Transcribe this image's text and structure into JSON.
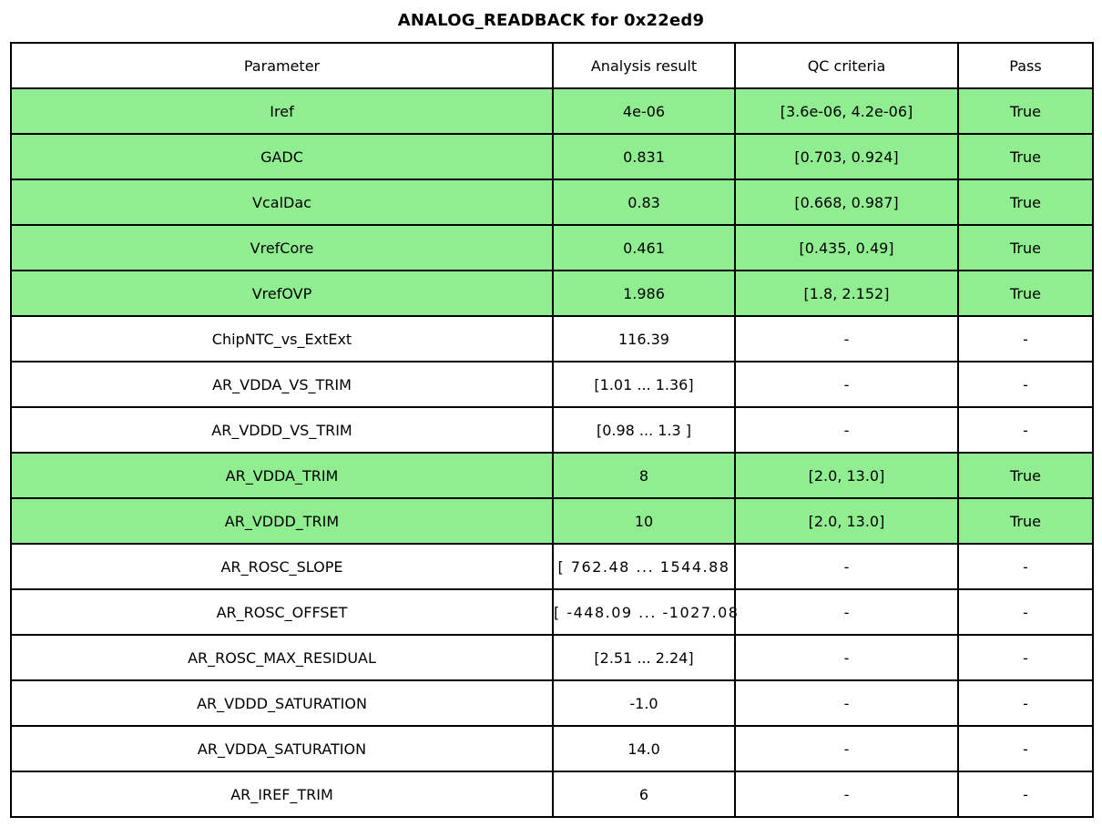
{
  "colors": {
    "pass_row_bg": "#90ee90",
    "border": "#000000",
    "background": "#ffffff",
    "text": "#000000"
  },
  "chart_data": {
    "type": "table",
    "title": "ANALOG_READBACK for 0x22ed9",
    "columns": [
      "Parameter",
      "Analysis result",
      "QC criteria",
      "Pass"
    ],
    "rows": [
      {
        "parameter": "Iref",
        "result": "4e-06",
        "qc": "[3.6e-06, 4.2e-06]",
        "pass": "True"
      },
      {
        "parameter": "GADC",
        "result": "0.831",
        "qc": "[0.703, 0.924]",
        "pass": "True"
      },
      {
        "parameter": "VcalDac",
        "result": "0.83",
        "qc": "[0.668, 0.987]",
        "pass": "True"
      },
      {
        "parameter": "VrefCore",
        "result": "0.461",
        "qc": "[0.435, 0.49]",
        "pass": "True"
      },
      {
        "parameter": "VrefOVP",
        "result": "1.986",
        "qc": "[1.8, 2.152]",
        "pass": "True"
      },
      {
        "parameter": "ChipNTC_vs_ExtExt",
        "result": "116.39",
        "qc": "-",
        "pass": "-"
      },
      {
        "parameter": "AR_VDDA_VS_TRIM",
        "result": "[1.01 ... 1.36]",
        "qc": "-",
        "pass": "-"
      },
      {
        "parameter": "AR_VDDD_VS_TRIM",
        "result": "[0.98 ... 1.3 ]",
        "qc": "-",
        "pass": "-"
      },
      {
        "parameter": "AR_VDDA_TRIM",
        "result": "8",
        "qc": "[2.0, 13.0]",
        "pass": "True"
      },
      {
        "parameter": "AR_VDDD_TRIM",
        "result": "10",
        "qc": "[2.0, 13.0]",
        "pass": "True"
      },
      {
        "parameter": "AR_ROSC_SLOPE",
        "result": "[ 762.48 ... 1544.88",
        "qc": "-",
        "pass": "-"
      },
      {
        "parameter": "AR_ROSC_OFFSET",
        "result": "[ -448.09 ... -1027.08",
        "qc": "-",
        "pass": "-"
      },
      {
        "parameter": "AR_ROSC_MAX_RESIDUAL",
        "result": "[2.51 ... 2.24]",
        "qc": "-",
        "pass": "-"
      },
      {
        "parameter": "AR_VDDD_SATURATION",
        "result": "-1.0",
        "qc": "-",
        "pass": "-"
      },
      {
        "parameter": "AR_VDDA_SATURATION",
        "result": "14.0",
        "qc": "-",
        "pass": "-"
      },
      {
        "parameter": "AR_IREF_TRIM",
        "result": "6",
        "qc": "-",
        "pass": "-"
      }
    ]
  }
}
